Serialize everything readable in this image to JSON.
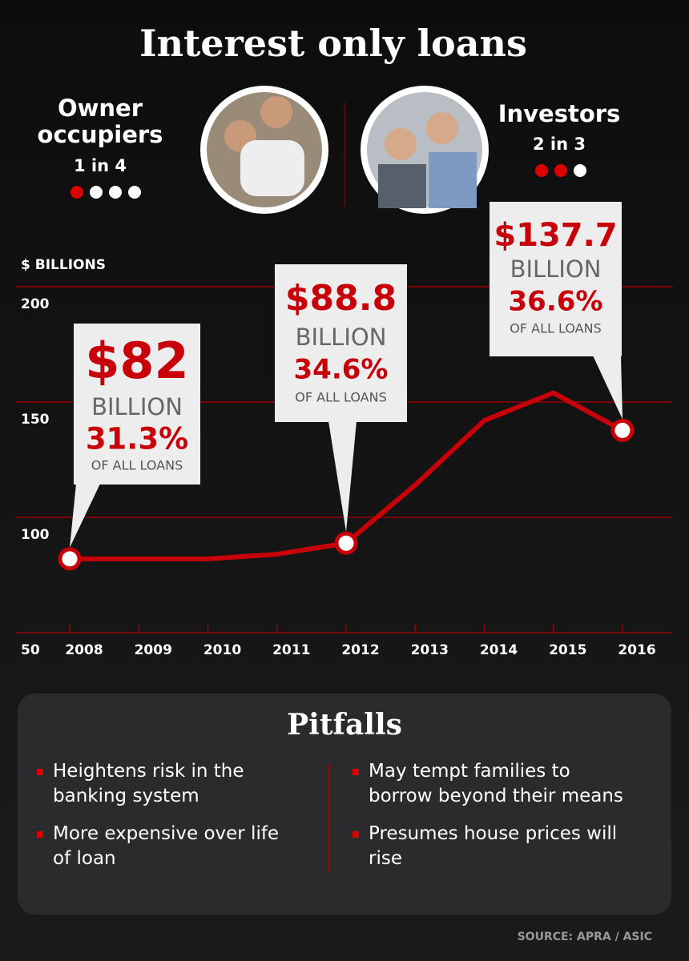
{
  "header": {
    "title": "Interest only loans",
    "left": {
      "label_lines": [
        "Owner",
        "occupiers"
      ],
      "ratio": "1 in 4"
    },
    "right": {
      "label": "Investors",
      "ratio": "2 in 3"
    }
  },
  "chart_data": {
    "type": "line",
    "y_label": "$ BILLIONS",
    "categories": [
      "2008",
      "2009",
      "2010",
      "2011",
      "2012",
      "2013",
      "2014",
      "2015",
      "2016"
    ],
    "values": [
      82,
      82,
      82,
      84,
      88.8,
      114,
      142,
      154,
      137.7
    ],
    "value_labels": [
      "$82",
      null,
      null,
      null,
      "$88.8",
      null,
      null,
      null,
      "$137.7"
    ],
    "unit_labels": [
      "BILLION",
      null,
      null,
      null,
      "BILLION",
      null,
      null,
      null,
      "BILLION"
    ],
    "share_labels": [
      "31.3%",
      null,
      null,
      null,
      "34.6%",
      null,
      null,
      null,
      "36.6%"
    ],
    "note_labels": [
      "OF ALL LOANS",
      null,
      null,
      null,
      "OF ALL LOANS",
      null,
      null,
      null,
      "OF ALL LOANS"
    ],
    "color": "#c8000a",
    "ylim": [
      50,
      200
    ],
    "yticks": [
      50,
      100,
      150,
      200
    ],
    "grid": true
  },
  "pitfalls": {
    "title": "Pitfalls",
    "items": [
      "Heightens risk in the banking system",
      "May tempt families to borrow beyond their means",
      "More expensive over life of loan",
      "Presumes house prices will rise"
    ]
  },
  "source": "SOURCE: APRA / ASIC"
}
